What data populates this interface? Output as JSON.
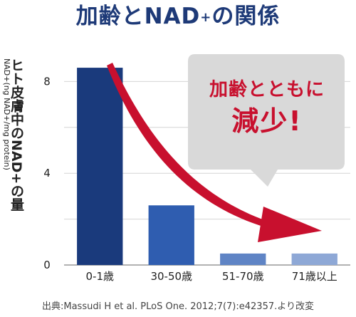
{
  "title_main": "加齢とNAD",
  "title_sup": "+",
  "title_tail": "の関係",
  "y_axis_main": "ヒト皮膚中のNAD+の量",
  "y_axis_unit": "NAD+(ng NAD+/mg protein)",
  "callout": {
    "line1": "加齢とともに",
    "line2": "減少!"
  },
  "footnote": "出典:Massudi H et al. PLoS One. 2012;7(7):e42357.より改変",
  "colors": {
    "arrow": "#c8102e",
    "callout_bg": "#d9d9d9",
    "title": "#1e3a78"
  },
  "chart_data": {
    "type": "bar",
    "categories": [
      "0-1歳",
      "30-50歳",
      "51-70歳",
      "71歳以上"
    ],
    "values": [
      8.6,
      2.6,
      0.5,
      0.5
    ],
    "bar_colors": [
      "#1a3a7c",
      "#2f5db0",
      "#5f84c5",
      "#8ea8d6"
    ],
    "y_ticks": [
      "0",
      "4",
      "8"
    ],
    "ylim": [
      0,
      10
    ],
    "grid": true
  }
}
